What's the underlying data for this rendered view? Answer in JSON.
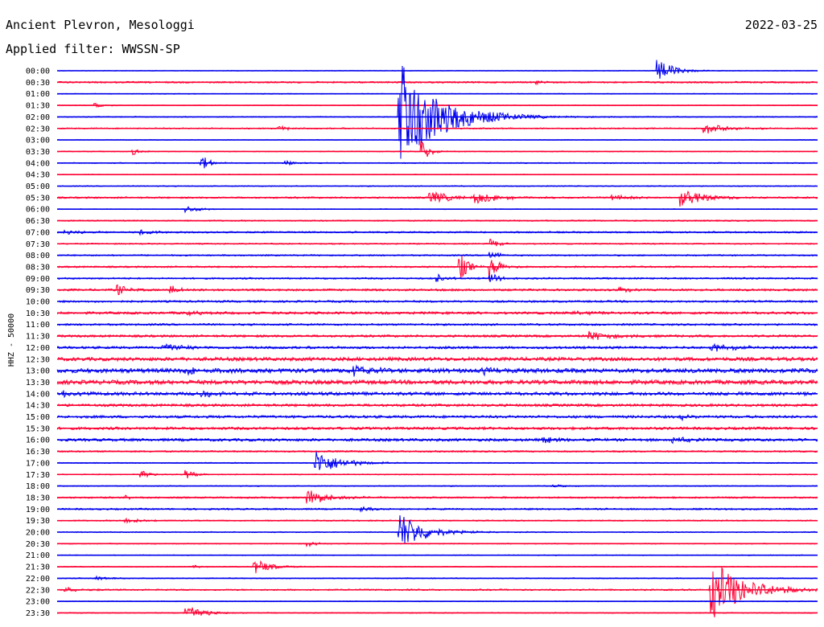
{
  "header": {
    "station": "Ancient Plevron, Mesologgi",
    "date": "2022-03-25",
    "filter": "Applied filter: WWSSN-SP"
  },
  "chart_data": {
    "type": "line",
    "title": "Ancient Plevron, Mesologgi",
    "subtitle": "Applied filter: WWSSN-SP",
    "date": "2022-03-25",
    "ylabel": "HHZ - 50000",
    "xlabel": "",
    "grid": false,
    "legend": "none",
    "series_colors": [
      "#0000ee",
      "#ff0033"
    ],
    "rows": [
      {
        "label": "00:00",
        "noise": 0.4,
        "events": [
          {
            "x": 0.79,
            "amp": 14,
            "dur": 0.02
          }
        ]
      },
      {
        "label": "00:30",
        "noise": 1.0,
        "events": [
          {
            "x": 0.63,
            "amp": 3,
            "dur": 0.01
          }
        ]
      },
      {
        "label": "01:00",
        "noise": 0.5,
        "events": []
      },
      {
        "label": "01:30",
        "noise": 0.5,
        "events": [
          {
            "x": 0.05,
            "amp": 3,
            "dur": 0.01
          }
        ]
      },
      {
        "label": "02:00",
        "noise": 0.6,
        "events": [
          {
            "x": 0.45,
            "amp": 70,
            "dur": 0.05
          }
        ]
      },
      {
        "label": "02:30",
        "noise": 0.8,
        "events": [
          {
            "x": 0.29,
            "amp": 5,
            "dur": 0.01
          },
          {
            "x": 0.85,
            "amp": 7,
            "dur": 0.03
          }
        ]
      },
      {
        "label": "03:00",
        "noise": 0.4,
        "events": []
      },
      {
        "label": "03:30",
        "noise": 0.6,
        "events": [
          {
            "x": 0.1,
            "amp": 4,
            "dur": 0.01
          },
          {
            "x": 0.48,
            "amp": 14,
            "dur": 0.01
          }
        ]
      },
      {
        "label": "04:00",
        "noise": 0.6,
        "events": [
          {
            "x": 0.19,
            "amp": 10,
            "dur": 0.01
          },
          {
            "x": 0.3,
            "amp": 4,
            "dur": 0.01
          }
        ]
      },
      {
        "label": "04:30",
        "noise": 0.4,
        "events": []
      },
      {
        "label": "05:00",
        "noise": 0.6,
        "events": []
      },
      {
        "label": "05:30",
        "noise": 1.0,
        "events": [
          {
            "x": 0.49,
            "amp": 8,
            "dur": 0.03
          },
          {
            "x": 0.55,
            "amp": 8,
            "dur": 0.03
          },
          {
            "x": 0.73,
            "amp": 4,
            "dur": 0.02
          },
          {
            "x": 0.82,
            "amp": 12,
            "dur": 0.03
          }
        ]
      },
      {
        "label": "06:00",
        "noise": 0.4,
        "events": [
          {
            "x": 0.17,
            "amp": 4,
            "dur": 0.02
          }
        ]
      },
      {
        "label": "06:30",
        "noise": 0.8,
        "events": []
      },
      {
        "label": "07:00",
        "noise": 1.0,
        "events": [
          {
            "x": 0.01,
            "amp": 3,
            "dur": 0.02
          },
          {
            "x": 0.11,
            "amp": 3,
            "dur": 0.02
          }
        ]
      },
      {
        "label": "07:30",
        "noise": 0.8,
        "events": [
          {
            "x": 0.57,
            "amp": 6,
            "dur": 0.01
          }
        ]
      },
      {
        "label": "08:00",
        "noise": 0.9,
        "events": [
          {
            "x": 0.57,
            "amp": 6,
            "dur": 0.01
          }
        ]
      },
      {
        "label": "08:30",
        "noise": 1.0,
        "events": [
          {
            "x": 0.53,
            "amp": 18,
            "dur": 0.01
          },
          {
            "x": 0.57,
            "amp": 18,
            "dur": 0.01
          }
        ]
      },
      {
        "label": "09:00",
        "noise": 1.0,
        "events": [
          {
            "x": 0.5,
            "amp": 6,
            "dur": 0.01
          },
          {
            "x": 0.57,
            "amp": 8,
            "dur": 0.01
          }
        ]
      },
      {
        "label": "09:30",
        "noise": 1.3,
        "events": [
          {
            "x": 0.08,
            "amp": 8,
            "dur": 0.01
          },
          {
            "x": 0.15,
            "amp": 6,
            "dur": 0.01
          },
          {
            "x": 0.74,
            "amp": 3,
            "dur": 0.02
          }
        ]
      },
      {
        "label": "10:00",
        "noise": 1.2,
        "events": []
      },
      {
        "label": "10:30",
        "noise": 1.5,
        "events": [
          {
            "x": 0.17,
            "amp": 3,
            "dur": 0.02
          },
          {
            "x": 0.68,
            "amp": 3,
            "dur": 0.02
          }
        ]
      },
      {
        "label": "11:00",
        "noise": 1.2,
        "events": []
      },
      {
        "label": "11:30",
        "noise": 1.4,
        "events": [
          {
            "x": 0.7,
            "amp": 6,
            "dur": 0.03
          }
        ]
      },
      {
        "label": "12:00",
        "noise": 1.5,
        "events": [
          {
            "x": 0.14,
            "amp": 5,
            "dur": 0.03
          },
          {
            "x": 0.86,
            "amp": 5,
            "dur": 0.03
          }
        ]
      },
      {
        "label": "12:30",
        "noise": 2.2,
        "events": []
      },
      {
        "label": "13:00",
        "noise": 2.6,
        "events": [
          {
            "x": 0.17,
            "amp": 5,
            "dur": 0.03
          },
          {
            "x": 0.39,
            "amp": 8,
            "dur": 0.02
          },
          {
            "x": 0.56,
            "amp": 5,
            "dur": 0.02
          }
        ]
      },
      {
        "label": "13:30",
        "noise": 2.6,
        "events": []
      },
      {
        "label": "14:00",
        "noise": 2.0,
        "events": [
          {
            "x": 0.01,
            "amp": 4,
            "dur": 0.02
          },
          {
            "x": 0.19,
            "amp": 4,
            "dur": 0.02
          }
        ]
      },
      {
        "label": "14:30",
        "noise": 1.6,
        "events": []
      },
      {
        "label": "15:00",
        "noise": 1.6,
        "events": [
          {
            "x": 0.82,
            "amp": 4,
            "dur": 0.01
          }
        ]
      },
      {
        "label": "15:30",
        "noise": 1.6,
        "events": []
      },
      {
        "label": "16:00",
        "noise": 1.7,
        "events": [
          {
            "x": 0.64,
            "amp": 4,
            "dur": 0.02
          },
          {
            "x": 0.81,
            "amp": 4,
            "dur": 0.02
          }
        ]
      },
      {
        "label": "16:30",
        "noise": 1.0,
        "events": []
      },
      {
        "label": "17:00",
        "noise": 0.6,
        "events": [
          {
            "x": 0.34,
            "amp": 16,
            "dur": 0.03
          }
        ]
      },
      {
        "label": "17:30",
        "noise": 0.6,
        "events": [
          {
            "x": 0.11,
            "amp": 8,
            "dur": 0.01
          },
          {
            "x": 0.17,
            "amp": 6,
            "dur": 0.01
          }
        ]
      },
      {
        "label": "18:00",
        "noise": 0.6,
        "events": [
          {
            "x": 0.65,
            "amp": 2,
            "dur": 0.02
          }
        ]
      },
      {
        "label": "18:30",
        "noise": 1.0,
        "events": [
          {
            "x": 0.33,
            "amp": 9,
            "dur": 0.03
          },
          {
            "x": 0.09,
            "amp": 2,
            "dur": 0.01
          }
        ]
      },
      {
        "label": "19:00",
        "noise": 1.0,
        "events": [
          {
            "x": 0.4,
            "amp": 4,
            "dur": 0.01
          }
        ]
      },
      {
        "label": "19:30",
        "noise": 0.8,
        "events": [
          {
            "x": 0.09,
            "amp": 4,
            "dur": 0.02
          }
        ]
      },
      {
        "label": "20:00",
        "noise": 0.6,
        "events": [
          {
            "x": 0.45,
            "amp": 26,
            "dur": 0.03
          }
        ]
      },
      {
        "label": "20:30",
        "noise": 0.6,
        "events": [
          {
            "x": 0.33,
            "amp": 4,
            "dur": 0.01
          }
        ]
      },
      {
        "label": "21:00",
        "noise": 0.5,
        "events": []
      },
      {
        "label": "21:30",
        "noise": 0.6,
        "events": [
          {
            "x": 0.26,
            "amp": 10,
            "dur": 0.02
          },
          {
            "x": 0.18,
            "amp": 2,
            "dur": 0.01
          }
        ]
      },
      {
        "label": "22:00",
        "noise": 0.6,
        "events": [
          {
            "x": 0.05,
            "amp": 3,
            "dur": 0.02
          }
        ]
      },
      {
        "label": "22:30",
        "noise": 0.9,
        "events": [
          {
            "x": 0.86,
            "amp": 40,
            "dur": 0.04
          },
          {
            "x": 0.01,
            "amp": 3,
            "dur": 0.02
          }
        ]
      },
      {
        "label": "23:00",
        "noise": 0.5,
        "events": []
      },
      {
        "label": "23:30",
        "noise": 0.6,
        "events": [
          {
            "x": 0.17,
            "amp": 12,
            "dur": 0.02
          }
        ]
      }
    ]
  }
}
